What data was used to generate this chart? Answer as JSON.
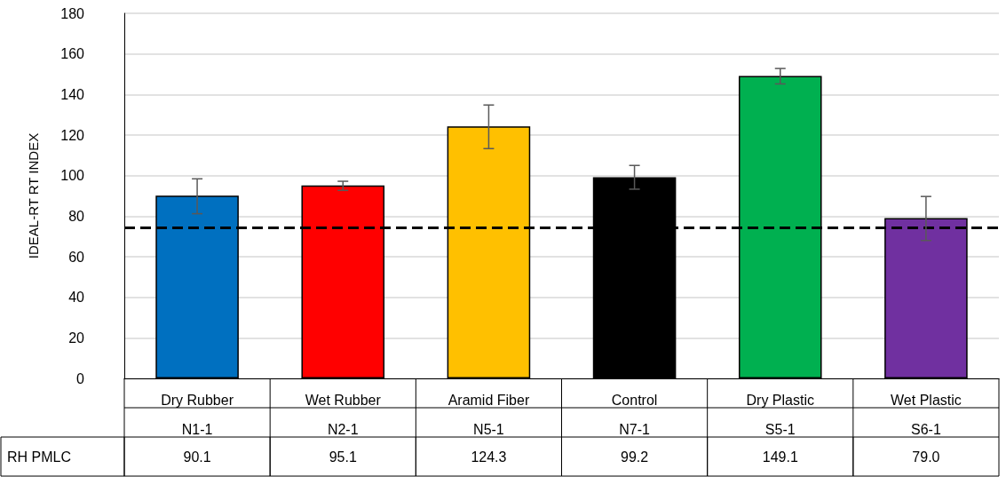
{
  "chart_data": {
    "type": "bar",
    "ylabel": "IDEAL-RT RT INDEX",
    "categories": [
      "Dry Rubber\nN1-1",
      "Wet Rubber\nN2-1",
      "Aramid Fiber\nN5-1",
      "Control\nN7-1",
      "Dry Plastic\nS5-1",
      "Wet Plastic\nS6-1"
    ],
    "series": [
      {
        "name": "RH PMLC",
        "values": [
          90.1,
          95.1,
          124.3,
          99.2,
          149.1,
          79.0
        ],
        "colors": [
          "#0070c0",
          "#ff0000",
          "#ffc000",
          "#000000",
          "#00b050",
          "#7030a0"
        ],
        "value_labels": [
          "90.1",
          "95.1",
          "124.3",
          "99.2",
          "149.1",
          "79.0"
        ],
        "errors": [
          [
            81.2,
            98.4
          ],
          [
            92.7,
            97.2
          ],
          [
            113.3,
            134.8
          ],
          [
            93.3,
            105
          ],
          [
            145.2,
            152.8
          ],
          [
            68.0,
            89.7
          ]
        ]
      }
    ],
    "ylim": [
      0,
      180
    ],
    "yticks": [
      0,
      20,
      40,
      60,
      80,
      100,
      120,
      140,
      160,
      180
    ],
    "grid": "y",
    "legend": false,
    "ref_lines": [
      {
        "axis": "y",
        "value": 74.5,
        "color": "#000000",
        "line_style": "dashed"
      }
    ]
  }
}
